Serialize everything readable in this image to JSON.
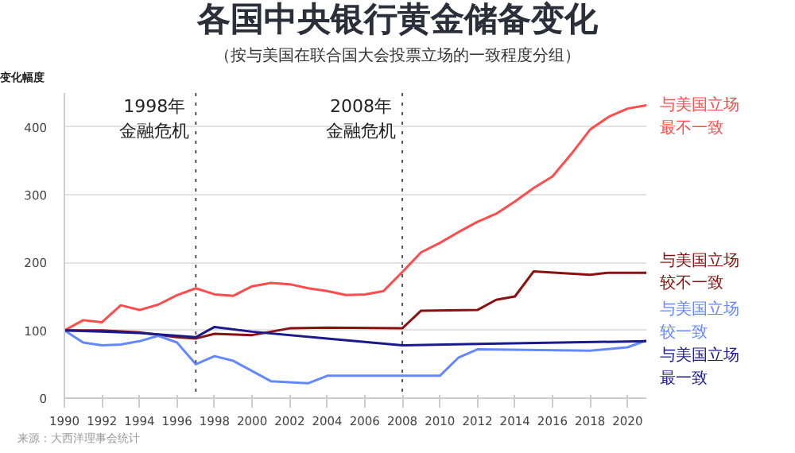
{
  "chart_data": {
    "type": "line",
    "title": "各国中央银行黄金储备变化",
    "subtitle": "（按与美国在联合国大会投票立场的一致程度分组）",
    "ylabel": "变化幅度",
    "annotations": [
      "来源：大西洋理事会统计"
    ],
    "xlim": [
      1990,
      2021
    ],
    "xticks": [
      1990,
      1992,
      1994,
      1996,
      1998,
      2000,
      2002,
      2004,
      2006,
      2008,
      2010,
      2012,
      2014,
      2016,
      2018,
      2020
    ],
    "ylim": [
      0,
      450
    ],
    "yticks": [
      0,
      100,
      200,
      300,
      400
    ],
    "grid": "y",
    "marker": "none",
    "line_style": "solid",
    "ref_lines": [
      {
        "axis": "x",
        "value": 1997,
        "label": "1998年金融危机",
        "color": "#555555",
        "line_style": "dotted"
      },
      {
        "axis": "x",
        "value": 2008,
        "label": "2008年金融危机",
        "color": "#555555",
        "line_style": "dotted"
      }
    ],
    "series": [
      {
        "name": "与美国立场最不一致",
        "color": "#ff4d4d",
        "x": [
          1990,
          1991,
          1992,
          1993,
          1994,
          1995,
          1996,
          1997,
          1998,
          1999,
          2000,
          2001,
          2002,
          2003,
          2004,
          2005,
          2006,
          2007,
          2008,
          2009,
          2010,
          2011,
          2012,
          2013,
          2014,
          2015,
          2016,
          2017,
          2018,
          2019,
          2020,
          2021
        ],
        "values": [
          100,
          115,
          112,
          137,
          130,
          138,
          152,
          162,
          153,
          151,
          165,
          170,
          168,
          162,
          158,
          152,
          153,
          158,
          186,
          215,
          229,
          245,
          260,
          272,
          290,
          310,
          327,
          360,
          396,
          415,
          427,
          432
        ]
      },
      {
        "name": "与美国立场较不一致",
        "color": "#8b1010",
        "x": [
          1990,
          1992,
          1994,
          1996,
          1997,
          1998,
          2000,
          2002,
          2004,
          2008,
          2009,
          2012,
          2013,
          2014,
          2015,
          2018,
          2019,
          2021
        ],
        "values": [
          100,
          100,
          97,
          90,
          88,
          95,
          93,
          103,
          104,
          103,
          129,
          130,
          145,
          150,
          187,
          182,
          185,
          185
        ]
      },
      {
        "name": "与美国立场较一致",
        "color": "#6688ff",
        "x": [
          1990,
          1991,
          1992,
          1993,
          1994,
          1995,
          1996,
          1997,
          1998,
          1999,
          2000,
          2001,
          2003,
          2004,
          2010,
          2011,
          2012,
          2018,
          2020,
          2021
        ],
        "values": [
          100,
          82,
          78,
          79,
          84,
          92,
          82,
          50,
          62,
          55,
          40,
          25,
          22,
          33,
          33,
          60,
          72,
          70,
          75,
          85
        ]
      },
      {
        "name": "与美国立场最一致",
        "color": "#1a1a8c",
        "x": [
          1990,
          1992,
          1994,
          1997,
          1998,
          2000,
          2004,
          2008,
          2012,
          2021
        ],
        "values": [
          100,
          98,
          96,
          90,
          105,
          98,
          88,
          78,
          80,
          84
        ]
      }
    ]
  }
}
